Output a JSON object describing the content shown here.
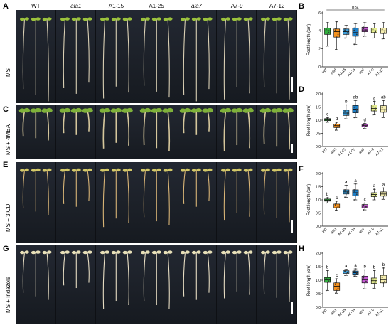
{
  "figure": {
    "panel_letters": [
      "A",
      "B",
      "C",
      "D",
      "E",
      "F",
      "G",
      "H"
    ],
    "genotypes": [
      "WT",
      "ala1",
      "A1-15",
      "A1-25",
      "ala7",
      "A7-9",
      "A7-12"
    ],
    "genotypes_italic": [
      false,
      true,
      false,
      false,
      true,
      false,
      false
    ],
    "row_labels": [
      "MS",
      "MS + 4MBA",
      "MS + 3ICD",
      "MS + Indazole"
    ]
  },
  "colors": {
    "WT": "#2fae3c",
    "ala1": "#f7931e",
    "A1-15": "#3ea0dc",
    "A1-25": "#1c7fc8",
    "ala7": "#c85ad6",
    "A7-9": "#e6ee92",
    "A7-12": "#f5eeb0"
  },
  "chart_data": [
    {
      "panel": "B",
      "type": "box",
      "ylabel": "Root length (cm)",
      "ylim": [
        0,
        6
      ],
      "yticks": [
        0,
        2,
        4,
        6
      ],
      "categories": [
        "WT",
        "ala1",
        "A1-15",
        "A1-25",
        "ala7",
        "A7-9",
        "A7-12"
      ],
      "boxes": [
        {
          "min": 2.3,
          "q1": 3.6,
          "median": 4.0,
          "q3": 4.3,
          "max": 4.9
        },
        {
          "min": 1.9,
          "q1": 3.3,
          "median": 3.9,
          "q3": 4.2,
          "max": 5.0
        },
        {
          "min": 3.2,
          "q1": 3.6,
          "median": 3.9,
          "q3": 4.2,
          "max": 4.6
        },
        {
          "min": 2.5,
          "q1": 3.4,
          "median": 3.8,
          "q3": 4.3,
          "max": 4.8
        },
        {
          "min": 3.4,
          "q1": 3.9,
          "median": 4.1,
          "q3": 4.4,
          "max": 4.9
        },
        {
          "min": 3.2,
          "q1": 3.8,
          "median": 4.0,
          "q3": 4.3,
          "max": 4.8
        },
        {
          "min": 3.1,
          "q1": 3.7,
          "median": 4.0,
          "q3": 4.3,
          "max": 4.9
        }
      ],
      "annotation": "n.s.",
      "letters": []
    },
    {
      "panel": "D",
      "type": "box",
      "ylabel": "Root length (cm)",
      "ylim": [
        0,
        2.0
      ],
      "yticks": [
        0.0,
        0.5,
        1.0,
        1.5,
        2.0
      ],
      "categories": [
        "WT",
        "ala1",
        "A1-15",
        "A1-25",
        "ala7",
        "A7-9",
        "A7-12"
      ],
      "boxes": [
        {
          "min": 0.92,
          "q1": 0.98,
          "median": 1.02,
          "q3": 1.06,
          "max": 1.1
        },
        {
          "min": 0.62,
          "q1": 0.72,
          "median": 0.79,
          "q3": 0.85,
          "max": 0.92
        },
        {
          "min": 1.05,
          "q1": 1.18,
          "median": 1.27,
          "q3": 1.38,
          "max": 1.58
        },
        {
          "min": 1.1,
          "q1": 1.28,
          "median": 1.42,
          "q3": 1.56,
          "max": 1.75
        },
        {
          "min": 0.68,
          "q1": 0.74,
          "median": 0.79,
          "q3": 0.84,
          "max": 0.88
        },
        {
          "min": 1.2,
          "q1": 1.35,
          "median": 1.45,
          "q3": 1.58,
          "max": 1.72
        },
        {
          "min": 1.1,
          "q1": 1.3,
          "median": 1.4,
          "q3": 1.55,
          "max": 1.75
        }
      ],
      "annotation": "",
      "letters": [
        "c",
        "d",
        "b",
        "ab",
        "d",
        "a",
        "ab"
      ]
    },
    {
      "panel": "F",
      "type": "box",
      "ylabel": "Root length (cm)",
      "ylim": [
        0,
        2.0
      ],
      "yticks": [
        0.0,
        0.5,
        1.0,
        1.5,
        2.0
      ],
      "categories": [
        "WT",
        "ala1",
        "A1-15",
        "A1-25",
        "ala7",
        "A7-9",
        "A7-12"
      ],
      "boxes": [
        {
          "min": 0.88,
          "q1": 0.95,
          "median": 0.99,
          "q3": 1.03,
          "max": 1.08
        },
        {
          "min": 0.6,
          "q1": 0.7,
          "median": 0.77,
          "q3": 0.84,
          "max": 0.95
        },
        {
          "min": 1.1,
          "q1": 1.22,
          "median": 1.3,
          "q3": 1.38,
          "max": 1.55
        },
        {
          "min": 1.0,
          "q1": 1.15,
          "median": 1.27,
          "q3": 1.38,
          "max": 1.6
        },
        {
          "min": 0.62,
          "q1": 0.7,
          "median": 0.76,
          "q3": 0.82,
          "max": 0.88
        },
        {
          "min": 1.0,
          "q1": 1.12,
          "median": 1.2,
          "q3": 1.27,
          "max": 1.4
        },
        {
          "min": 1.02,
          "q1": 1.14,
          "median": 1.22,
          "q3": 1.3,
          "max": 1.45
        }
      ],
      "annotation": "",
      "letters": [
        "b",
        "c",
        "a",
        "a",
        "c",
        "a",
        "a"
      ]
    },
    {
      "panel": "H",
      "type": "box",
      "ylabel": "Root length (cm)",
      "ylim": [
        0,
        2.0
      ],
      "yticks": [
        0.0,
        0.5,
        1.0,
        1.5,
        2.0
      ],
      "categories": [
        "WT",
        "ala1",
        "A1-15",
        "A1-25",
        "ala7",
        "A7-9",
        "A7-12"
      ],
      "boxes": [
        {
          "min": 0.62,
          "q1": 0.92,
          "median": 1.02,
          "q3": 1.1,
          "max": 1.36
        },
        {
          "min": 0.52,
          "q1": 0.62,
          "median": 0.78,
          "q3": 0.9,
          "max": 1.05
        },
        {
          "min": 1.18,
          "q1": 1.25,
          "median": 1.3,
          "q3": 1.35,
          "max": 1.4
        },
        {
          "min": 1.15,
          "q1": 1.22,
          "median": 1.28,
          "q3": 1.34,
          "max": 1.42
        },
        {
          "min": 0.68,
          "q1": 0.9,
          "median": 1.02,
          "q3": 1.15,
          "max": 1.38
        },
        {
          "min": 0.7,
          "q1": 0.88,
          "median": 0.98,
          "q3": 1.08,
          "max": 1.36
        },
        {
          "min": 0.75,
          "q1": 0.9,
          "median": 1.02,
          "q3": 1.18,
          "max": 1.45
        }
      ],
      "annotation": "",
      "letters": [
        "b",
        "c",
        "a",
        "a",
        "b",
        "b",
        "b"
      ]
    }
  ]
}
